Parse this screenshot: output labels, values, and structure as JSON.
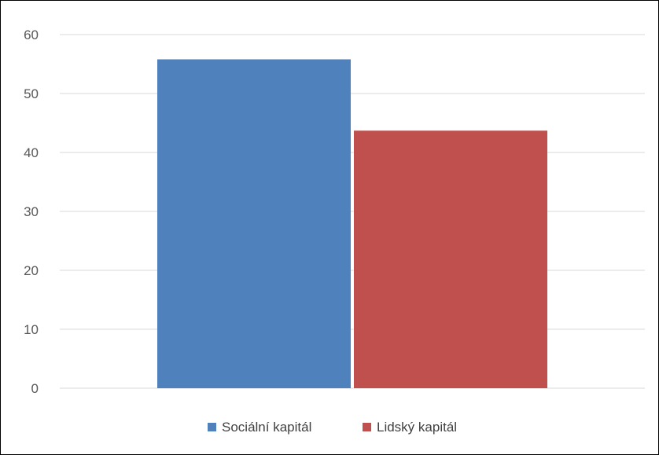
{
  "chart_data": {
    "type": "bar",
    "categories": [
      ""
    ],
    "series": [
      {
        "name": "Sociální kapitál",
        "values": [
          55.8
        ],
        "color": "#4F81BD"
      },
      {
        "name": "Lidský kapitál",
        "values": [
          43.7
        ],
        "color": "#C0504D"
      }
    ],
    "title": "",
    "xlabel": "",
    "ylabel": "",
    "ylim": [
      0,
      60
    ],
    "yticks": [
      "0",
      "10",
      "20",
      "30",
      "40",
      "50",
      "60"
    ],
    "grid": true,
    "legend_position": "bottom"
  },
  "colors": {
    "gridline": "#D9D9D9",
    "tick_text": "#595959",
    "legend_text": "#404040"
  }
}
